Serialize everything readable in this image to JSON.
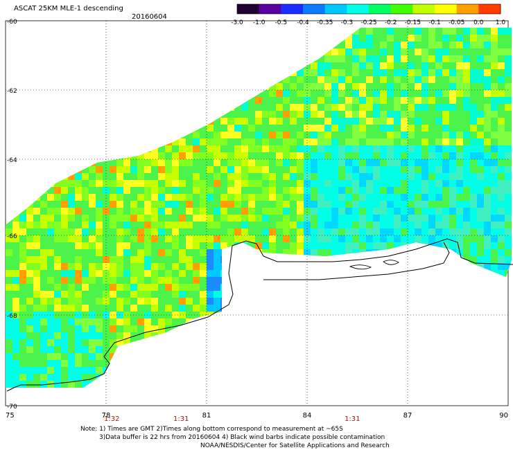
{
  "header": {
    "title": "ASCAT 25KM MLE-1 descending",
    "date": "20160604"
  },
  "colorbar": {
    "labels": [
      "-3.0",
      "-1.0",
      "-0.5",
      "-0.4",
      "-0.35",
      "-0.3",
      "-0.25",
      "-0.2",
      "-0.15",
      "-0.1",
      "-0.05",
      "0.0",
      "1.0"
    ],
    "colors": [
      "#200030",
      "#5a00a0",
      "#1a2cff",
      "#0a7aff",
      "#00c8ff",
      "#00ffe6",
      "#00ff60",
      "#40ff00",
      "#c0ff00",
      "#ffff00",
      "#ffa000",
      "#ff3c00"
    ]
  },
  "axes": {
    "x_ticks": [
      "75",
      "78",
      "81",
      "84",
      "87",
      "90"
    ],
    "y_ticks": [
      "-60",
      "-62",
      "-64",
      "-66",
      "-68",
      "-70"
    ]
  },
  "time_labels": [
    "1:32",
    "1:31",
    "1:31"
  ],
  "notes": {
    "line1": "Note: 1) Times are GMT 2)Times along bottom correspond to measurement at ~65S",
    "line2": "3)Data buffer is 22 hrs from 20160604 4) Black wind barbs indicate possible contamination",
    "line3": "NOAA/NESDIS/Center for Satellite Applications and Research"
  }
}
